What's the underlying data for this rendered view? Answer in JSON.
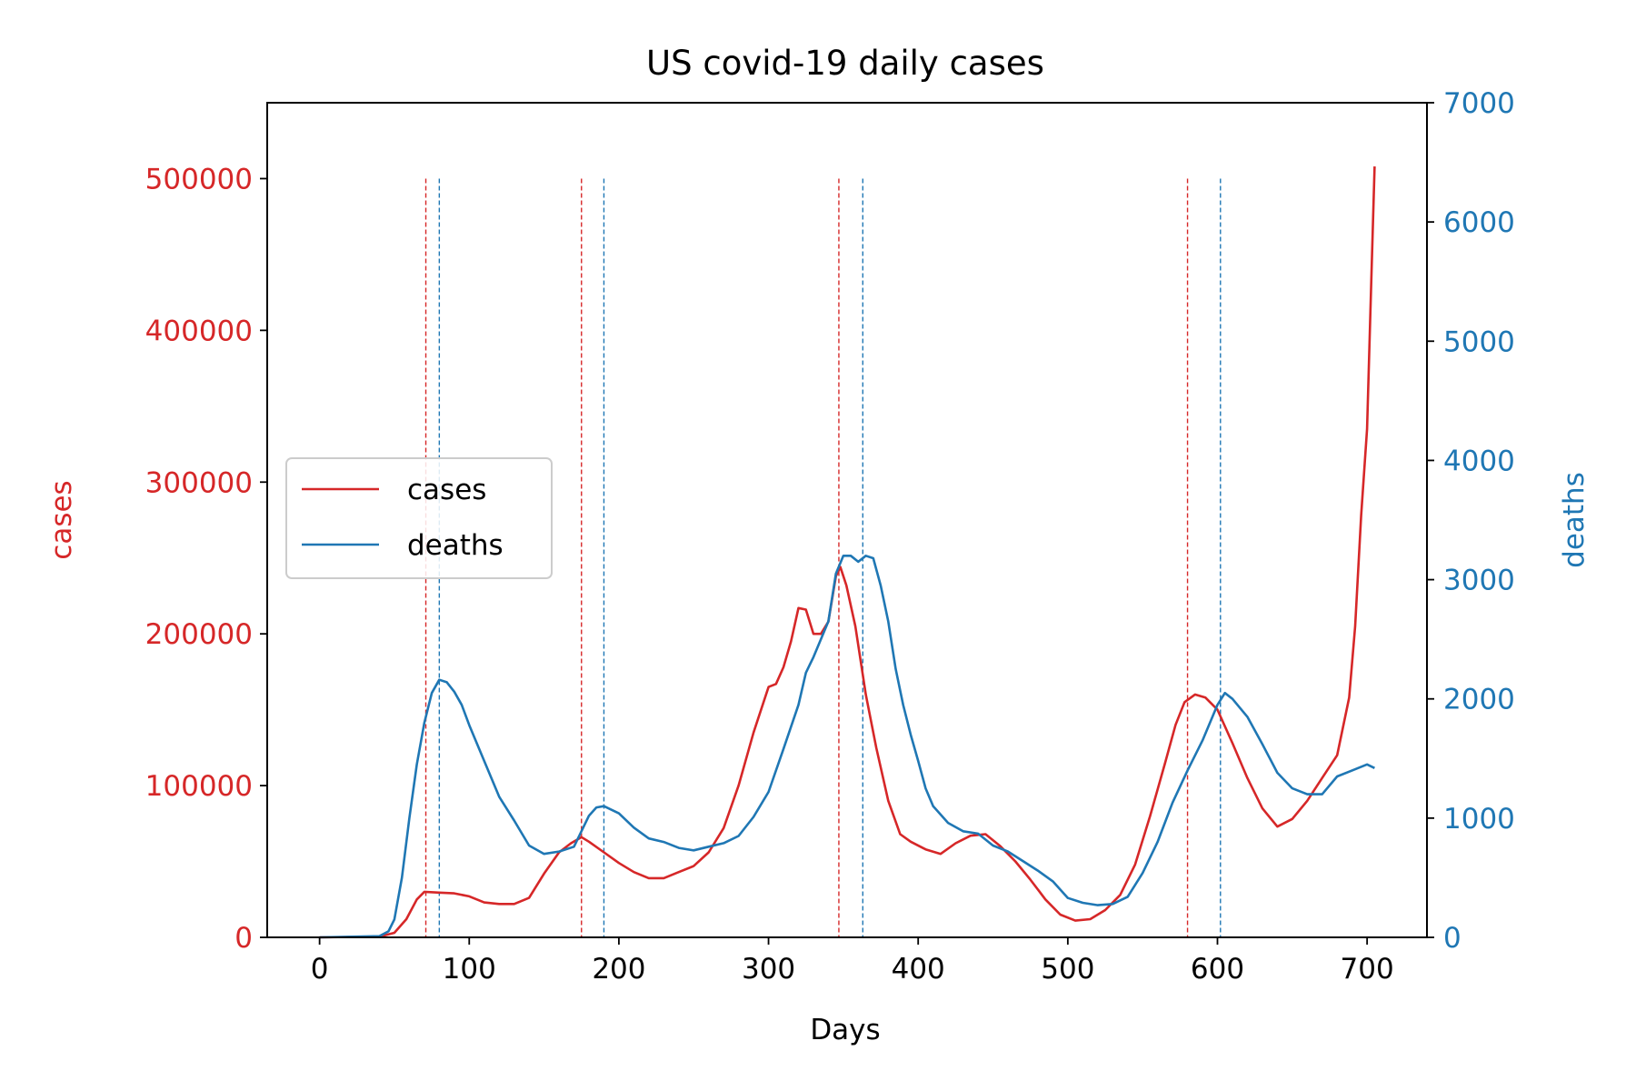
{
  "chart_data": {
    "type": "line",
    "title": "US covid-19 daily cases",
    "xlabel": "Days",
    "ylabel_left": "cases",
    "ylabel_right": "deaths",
    "xlim": [
      -35,
      740
    ],
    "ylim_left": [
      0,
      550000
    ],
    "ylim_right": [
      0,
      7000
    ],
    "xticks": [
      0,
      100,
      200,
      300,
      400,
      500,
      600,
      700
    ],
    "yticks_left": [
      0,
      100000,
      200000,
      300000,
      400000,
      500000
    ],
    "yticks_right": [
      0,
      1000,
      2000,
      3000,
      4000,
      5000,
      6000,
      7000
    ],
    "grid": false,
    "legend_position": "center-left",
    "colors": {
      "cases": "#d62728",
      "deaths": "#1f77b4",
      "axis": "#000000"
    },
    "series": [
      {
        "name": "cases",
        "axis": "left",
        "color": "#d62728",
        "points": [
          [
            0,
            0
          ],
          [
            40,
            500
          ],
          [
            50,
            3000
          ],
          [
            58,
            12000
          ],
          [
            65,
            25000
          ],
          [
            70,
            30000
          ],
          [
            80,
            29500
          ],
          [
            90,
            29000
          ],
          [
            100,
            27000
          ],
          [
            110,
            23000
          ],
          [
            120,
            22000
          ],
          [
            130,
            22000
          ],
          [
            140,
            26000
          ],
          [
            150,
            42000
          ],
          [
            160,
            56000
          ],
          [
            168,
            62000
          ],
          [
            175,
            66000
          ],
          [
            180,
            63000
          ],
          [
            190,
            56000
          ],
          [
            200,
            49000
          ],
          [
            210,
            43000
          ],
          [
            220,
            39000
          ],
          [
            230,
            39000
          ],
          [
            240,
            43000
          ],
          [
            250,
            47000
          ],
          [
            260,
            56000
          ],
          [
            270,
            72000
          ],
          [
            280,
            100000
          ],
          [
            290,
            135000
          ],
          [
            300,
            165000
          ],
          [
            305,
            167000
          ],
          [
            310,
            178000
          ],
          [
            315,
            195000
          ],
          [
            320,
            217000
          ],
          [
            325,
            216000
          ],
          [
            330,
            200000
          ],
          [
            335,
            200000
          ],
          [
            340,
            208000
          ],
          [
            345,
            238000
          ],
          [
            348,
            244000
          ],
          [
            352,
            232000
          ],
          [
            358,
            205000
          ],
          [
            365,
            160000
          ],
          [
            372,
            125000
          ],
          [
            380,
            90000
          ],
          [
            388,
            68000
          ],
          [
            395,
            63000
          ],
          [
            405,
            58000
          ],
          [
            415,
            55000
          ],
          [
            425,
            62000
          ],
          [
            435,
            67000
          ],
          [
            445,
            68000
          ],
          [
            455,
            60000
          ],
          [
            465,
            50000
          ],
          [
            475,
            38000
          ],
          [
            485,
            25000
          ],
          [
            495,
            15000
          ],
          [
            505,
            11000
          ],
          [
            515,
            12000
          ],
          [
            525,
            18000
          ],
          [
            535,
            28000
          ],
          [
            545,
            48000
          ],
          [
            555,
            80000
          ],
          [
            565,
            115000
          ],
          [
            572,
            140000
          ],
          [
            578,
            155000
          ],
          [
            585,
            160000
          ],
          [
            592,
            158000
          ],
          [
            600,
            150000
          ],
          [
            610,
            128000
          ],
          [
            620,
            105000
          ],
          [
            630,
            85000
          ],
          [
            640,
            73000
          ],
          [
            650,
            78000
          ],
          [
            660,
            90000
          ],
          [
            670,
            105000
          ],
          [
            680,
            120000
          ],
          [
            688,
            158000
          ],
          [
            692,
            205000
          ],
          [
            696,
            278000
          ],
          [
            700,
            335000
          ],
          [
            703,
            440000
          ],
          [
            705,
            508000
          ]
        ]
      },
      {
        "name": "deaths",
        "axis": "right",
        "color": "#1f77b4",
        "points": [
          [
            0,
            0
          ],
          [
            40,
            10
          ],
          [
            46,
            50
          ],
          [
            50,
            150
          ],
          [
            55,
            500
          ],
          [
            60,
            1000
          ],
          [
            65,
            1450
          ],
          [
            70,
            1800
          ],
          [
            75,
            2050
          ],
          [
            80,
            2160
          ],
          [
            85,
            2140
          ],
          [
            90,
            2060
          ],
          [
            95,
            1950
          ],
          [
            100,
            1780
          ],
          [
            110,
            1480
          ],
          [
            120,
            1180
          ],
          [
            130,
            980
          ],
          [
            140,
            770
          ],
          [
            150,
            700
          ],
          [
            160,
            720
          ],
          [
            170,
            760
          ],
          [
            180,
            1020
          ],
          [
            185,
            1090
          ],
          [
            190,
            1100
          ],
          [
            200,
            1040
          ],
          [
            210,
            920
          ],
          [
            220,
            830
          ],
          [
            230,
            800
          ],
          [
            240,
            750
          ],
          [
            250,
            730
          ],
          [
            260,
            760
          ],
          [
            270,
            790
          ],
          [
            280,
            850
          ],
          [
            290,
            1010
          ],
          [
            300,
            1220
          ],
          [
            310,
            1580
          ],
          [
            320,
            1950
          ],
          [
            325,
            2220
          ],
          [
            330,
            2350
          ],
          [
            335,
            2500
          ],
          [
            340,
            2650
          ],
          [
            345,
            3050
          ],
          [
            350,
            3200
          ],
          [
            355,
            3200
          ],
          [
            360,
            3150
          ],
          [
            365,
            3200
          ],
          [
            370,
            3180
          ],
          [
            375,
            2950
          ],
          [
            380,
            2650
          ],
          [
            385,
            2250
          ],
          [
            390,
            1950
          ],
          [
            395,
            1700
          ],
          [
            400,
            1480
          ],
          [
            405,
            1250
          ],
          [
            410,
            1100
          ],
          [
            420,
            960
          ],
          [
            430,
            890
          ],
          [
            440,
            870
          ],
          [
            450,
            770
          ],
          [
            460,
            720
          ],
          [
            470,
            640
          ],
          [
            480,
            560
          ],
          [
            490,
            470
          ],
          [
            500,
            330
          ],
          [
            510,
            290
          ],
          [
            520,
            270
          ],
          [
            530,
            280
          ],
          [
            540,
            340
          ],
          [
            550,
            540
          ],
          [
            560,
            800
          ],
          [
            570,
            1130
          ],
          [
            580,
            1400
          ],
          [
            590,
            1650
          ],
          [
            600,
            1950
          ],
          [
            605,
            2050
          ],
          [
            610,
            2000
          ],
          [
            620,
            1850
          ],
          [
            630,
            1620
          ],
          [
            640,
            1380
          ],
          [
            650,
            1250
          ],
          [
            660,
            1200
          ],
          [
            670,
            1200
          ],
          [
            680,
            1350
          ],
          [
            690,
            1400
          ],
          [
            700,
            1450
          ],
          [
            705,
            1420
          ]
        ]
      }
    ],
    "reference_lines": [
      {
        "x": 71,
        "series": "cases"
      },
      {
        "x": 80,
        "series": "deaths"
      },
      {
        "x": 175,
        "series": "cases"
      },
      {
        "x": 190,
        "series": "deaths"
      },
      {
        "x": 347,
        "series": "cases"
      },
      {
        "x": 363,
        "series": "deaths"
      },
      {
        "x": 580,
        "series": "cases"
      },
      {
        "x": 602,
        "series": "deaths"
      }
    ],
    "reference_line_top": 500000
  }
}
